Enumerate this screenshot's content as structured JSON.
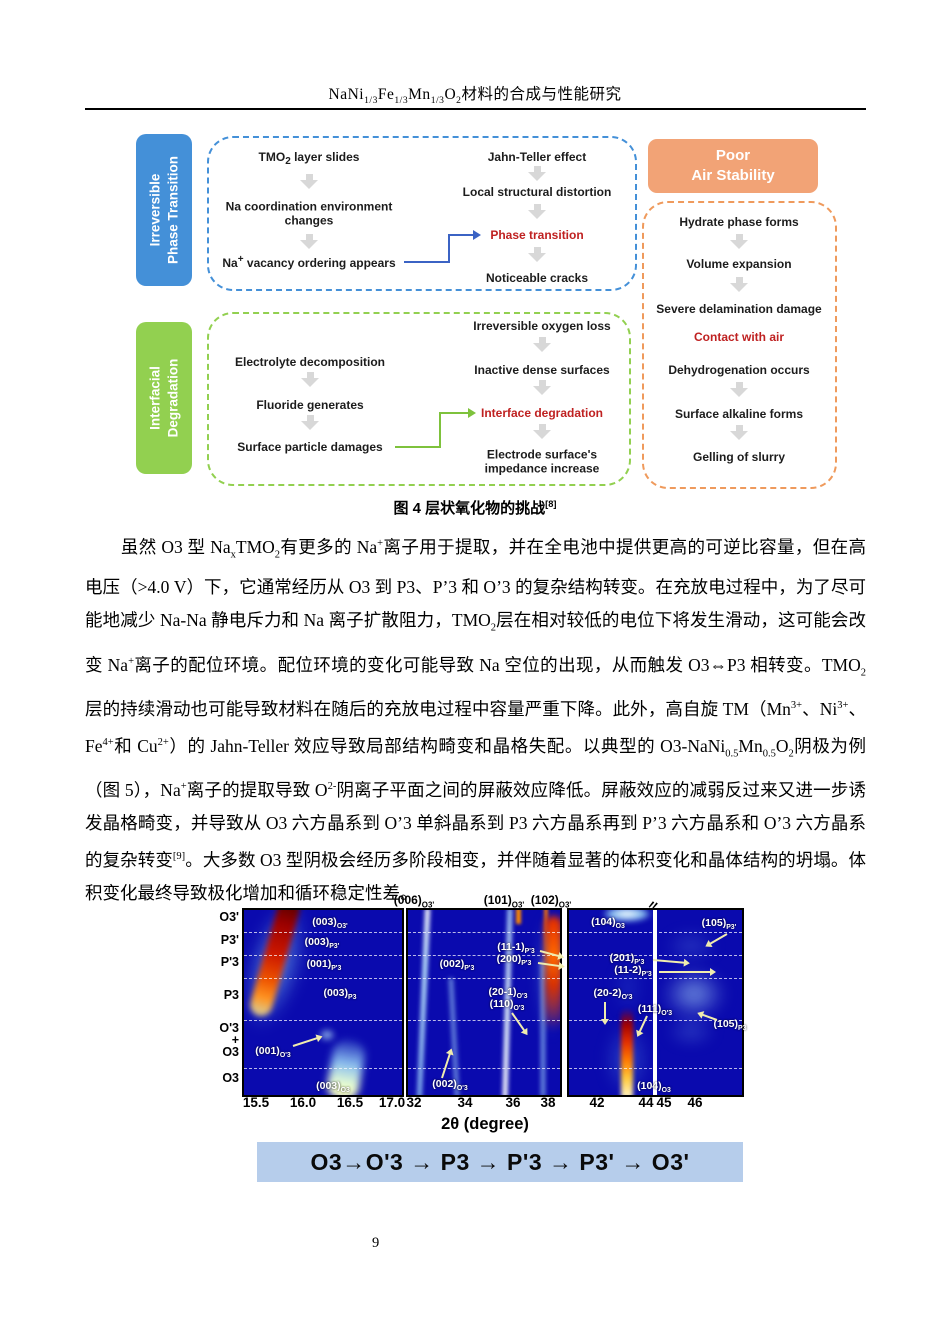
{
  "header": {
    "title_html": "NaNi<sub>1/3</sub>Fe<sub>1/3</sub>Mn<sub>1/3</sub>O<sub>2</sub>材料的合成与性能研究"
  },
  "figure4": {
    "side_labels": {
      "irreversible": [
        "Irreversible",
        "Phase Transition"
      ],
      "interfacial": [
        "Interfacial",
        "Degradation"
      ],
      "air": [
        "Poor",
        "Air Stability"
      ]
    },
    "pt_left": [
      "TMO<sub>2</sub> layer slides",
      "Na coordination environment<br>changes",
      "Na<sup>+</sup> vacancy ordering appears"
    ],
    "pt_right": [
      "Jahn-Teller effect",
      "Local structural distortion",
      "Phase transition",
      "Noticeable cracks"
    ],
    "id_left": [
      "Electrolyte decomposition",
      "Fluoride generates",
      "Surface particle damages"
    ],
    "id_right": [
      "Irreversible oxygen loss",
      "Inactive dense surfaces",
      "Interface degradation",
      "Electrode surface's<br>impedance increase"
    ],
    "air_steps": [
      "Hydrate phase forms",
      "Volume expansion",
      "Severe delamination damage",
      "Contact with air",
      "Dehydrogenation occurs",
      "Surface alkaline forms",
      "Gelling of slurry"
    ],
    "caption_html": "图 4 层状氧化物的挑战<sup>[8]</sup>"
  },
  "body_text": {
    "paragraph_html": "虽然 O3 型 Na<sub>x</sub>TMO<sub>2</sub>有更多的 Na<sup>+</sup>离子用于提取，并在全电池中提供更高的可逆比容量，但在高电压（&gt;4.0 V）下，它通常经历从 O3 到 P3、P’3 和 O’3 的复杂结构转变。在充放电过程中，为了尽可能地减少 Na-Na 静电斥力和 Na 离子扩散阻力，TMO<sub>2</sub>层在相对较低的电位下将发生滑动，这可能会改变 Na<sup>+</sup>离子的配位环境。配位环境的变化可能导致 Na 空位的出现，从而触发 O3⇔P3 相转变。TMO<sub>2</sub>层的持续滑动也可能导致材料在随后的充放电过程中容量严重下降。此外，高自旋 TM（Mn<sup>3+</sup>、Ni<sup>3+</sup>、Fe<sup>4+</sup>和 Cu<sup>2+</sup>）的 Jahn-Teller 效应导致局部结构畸变和晶格失配。以典型的 O3-NaNi<sub>0.5</sub>Mn<sub>0.5</sub>O<sub>2</sub>阴极为例（图 5），Na<sup>+</sup>离子的提取导致 O<sup>2-</sup>阴离子平面之间的屏蔽效应降低。屏蔽效应的减弱反过来又进一步诱发晶格畸变，并导致从 O3 六方晶系到 O’3 单斜晶系到 P3 六方晶系再到 P’3 六方晶系和 O’3 六方晶系的复杂转变<sup>[9]</sup>。大多数 O3 型阴极会经历多阶段相变，并伴随着显著的体积变化和晶体结构的坍塌。体积变化最终导致极化增加和循环稳定性差。"
  },
  "figure5": {
    "top_labels": [
      "(006)<sub>O3'</sub>",
      "(101)<sub>O3'</sub>",
      "(102)<sub>O3'</sub>"
    ],
    "y_labels": [
      "O3'",
      "P3'",
      "P'3",
      "P3",
      "O'3",
      "+",
      "O3",
      "O3"
    ],
    "panel1": {
      "xticks": [
        "15.5",
        "16.0",
        "16.5",
        "17.0"
      ],
      "annotations": [
        "(003)<sub>O3'</sub>",
        "(003)<sub>P3'</sub>",
        "(001)<sub>P'3</sub>",
        "(003)<sub>P3</sub>",
        "(001)<sub>O'3</sub>",
        "(003)<sub>O3</sub>"
      ]
    },
    "panel2": {
      "xticks": [
        "32",
        "34",
        "36",
        "38"
      ],
      "annotations": [
        "(002)<sub>P'3</sub>",
        "(11-1)<sub>P'3</sub>",
        "(200)<sub>P'3</sub>",
        "(20-1)<sub>O'3</sub>",
        "(110)<sub>O'3</sub>",
        "(002)<sub>O'3</sub>"
      ]
    },
    "panel3": {
      "xticks": [
        "42",
        "44",
        "45",
        "46"
      ],
      "annotations": [
        "(104)<sub>O3</sub>",
        "(105)<sub>P3'</sub>",
        "(201)<sub>P'3</sub>",
        "(11-2)<sub>P'3</sub>",
        "(20-2)<sub>O'3</sub>",
        "(111)<sub>O'3</sub>",
        "(105)<sub>P3</sub>",
        "(104)<sub>O3</sub>"
      ]
    },
    "xaxis_label": "2θ (degree)",
    "sequence": "O3→O'3 → P3 → P'3 → P3' → O3'"
  },
  "footer": {
    "page_number": "9"
  },
  "colors": {
    "blue_box": "#4490d8",
    "green_box": "#92d050",
    "orange_box": "#f2a376",
    "orange_dash": "#ef9a5c",
    "red_text": "#bf2121",
    "heatmap_bg": "#0a0aae",
    "banner_bg": "#b6cdeb"
  }
}
